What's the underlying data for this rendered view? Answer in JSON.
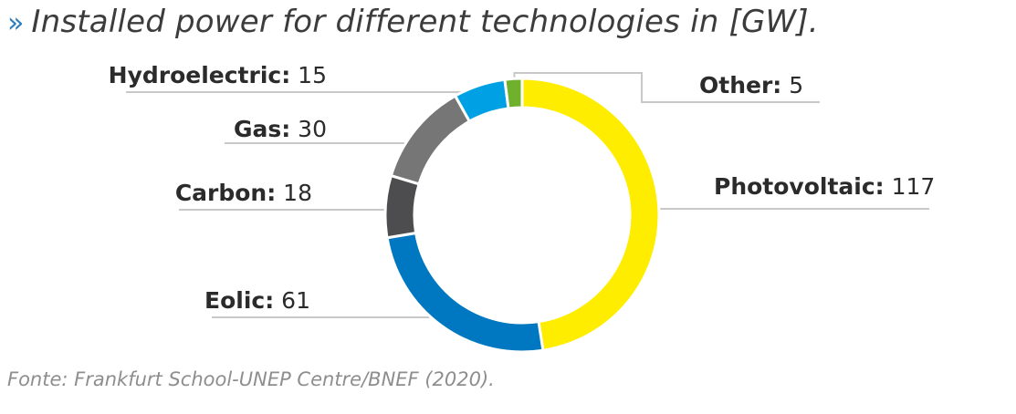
{
  "title_marker": "»",
  "title": "Installed power for different technologies in [GW].",
  "source": "Fonte: Frankfurt School-UNEP Centre/BNEF (2020).",
  "chart_data": {
    "type": "pie",
    "style": "donut",
    "title": "Installed power for different technologies in [GW].",
    "unit": "GW",
    "categories": [
      "Photovoltaic",
      "Eolic",
      "Carbon",
      "Gas",
      "Hydroelectric",
      "Other"
    ],
    "values": [
      117,
      61,
      18,
      30,
      15,
      5
    ],
    "colors": [
      "#ffed00",
      "#0078c1",
      "#4d4d4f",
      "#767676",
      "#00a1e4",
      "#6fb02c"
    ],
    "legend": "labels-with-leader-lines"
  }
}
